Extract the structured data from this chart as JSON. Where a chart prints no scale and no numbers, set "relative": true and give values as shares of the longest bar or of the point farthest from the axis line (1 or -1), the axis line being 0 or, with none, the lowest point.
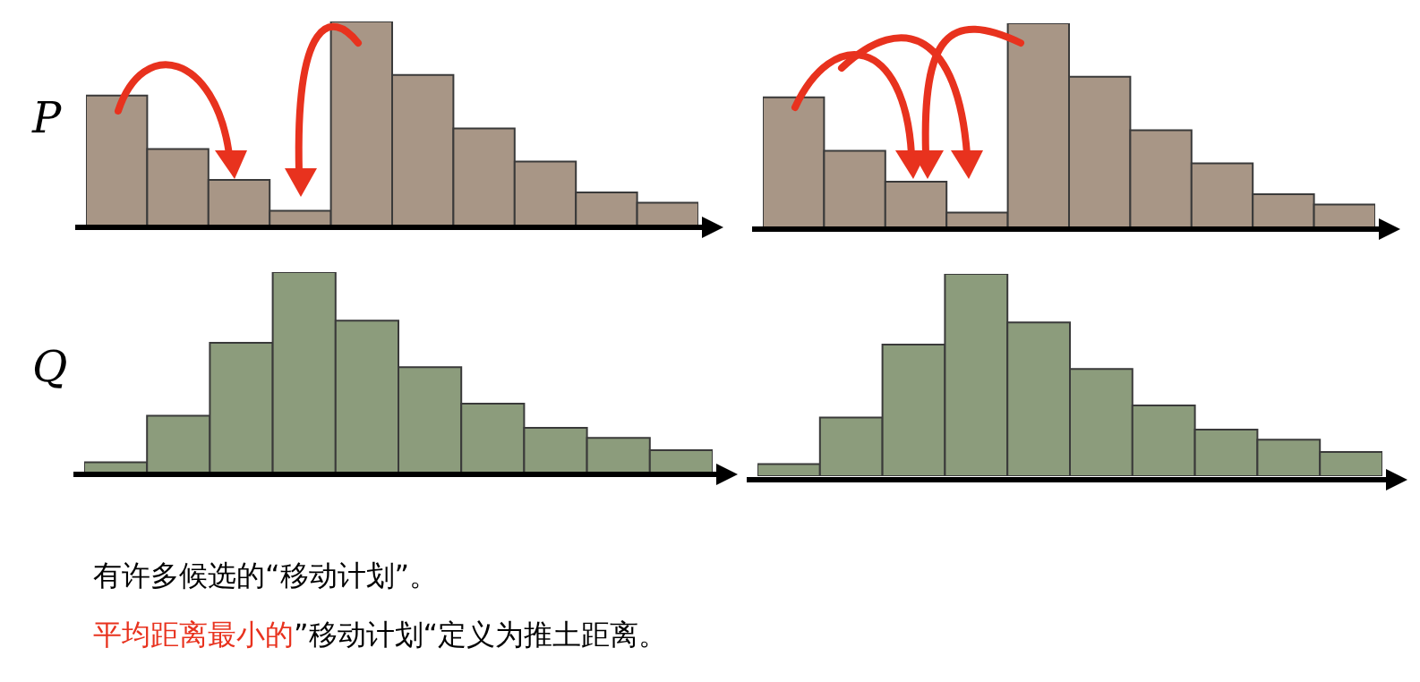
{
  "chart_data": [
    {
      "type": "bar",
      "relative": true,
      "ylabel": "P",
      "color": "#a89686",
      "categories": [
        null,
        null,
        null,
        null,
        null,
        null,
        null,
        null,
        null,
        null
      ],
      "values": [
        0.64,
        0.38,
        0.23,
        0.08,
        1,
        0.74,
        0.48,
        0.32,
        0.17,
        0.12
      ]
    },
    {
      "type": "bar",
      "relative": true,
      "color": "#a89686",
      "categories": [
        null,
        null,
        null,
        null,
        null,
        null,
        null,
        null,
        null,
        null
      ],
      "values": [
        0.64,
        0.38,
        0.23,
        0.08,
        1,
        0.74,
        0.48,
        0.32,
        0.17,
        0.12
      ]
    },
    {
      "type": "bar",
      "relative": true,
      "ylabel": "Q",
      "color": "#8c9c7c",
      "categories": [
        null,
        null,
        null,
        null,
        null,
        null,
        null,
        null,
        null,
        null
      ],
      "values": [
        0.06,
        0.29,
        0.65,
        1,
        0.76,
        0.53,
        0.35,
        0.23,
        0.18,
        0.12
      ]
    },
    {
      "type": "bar",
      "relative": true,
      "color": "#8c9c7c",
      "categories": [
        null,
        null,
        null,
        null,
        null,
        null,
        null,
        null,
        null,
        null
      ],
      "values": [
        0.06,
        0.29,
        0.65,
        1,
        0.76,
        0.53,
        0.35,
        0.23,
        0.18,
        0.12
      ],
      "annotations": [
        "有许多候选的“移动计划”。",
        "平均距离最小的",
        "”移动计划“定义为推土距离。"
      ]
    }
  ]
}
